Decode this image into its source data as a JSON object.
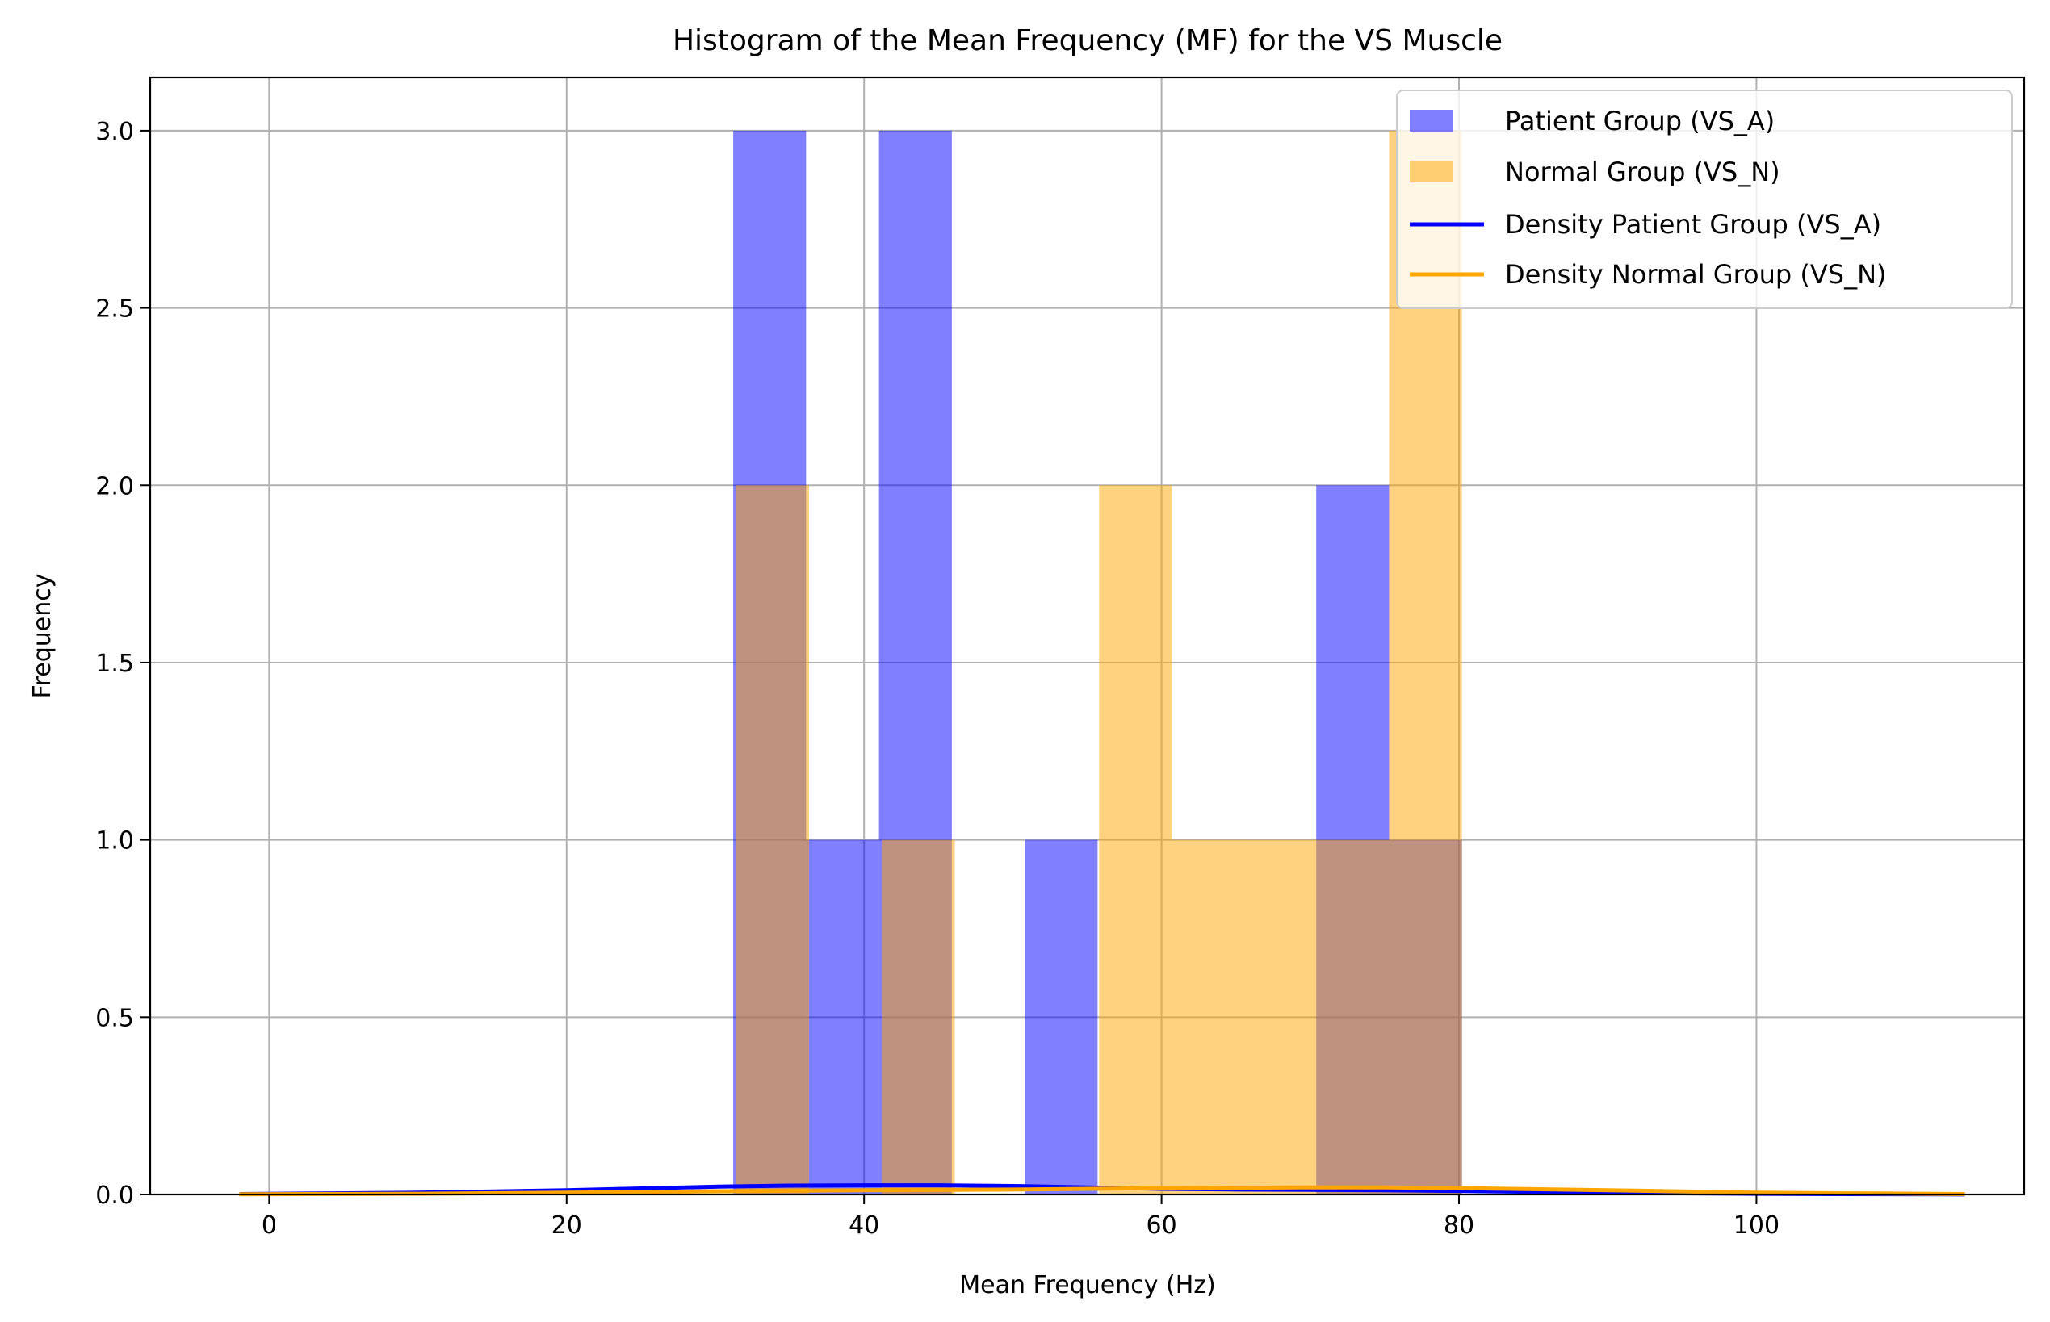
{
  "chart_data": {
    "type": "bar",
    "title": "Histogram of the Mean Frequency (MF) for the VS Muscle",
    "xlabel": "Mean Frequency (Hz)",
    "ylabel": "Frequency",
    "xlim": [
      -8,
      118
    ],
    "ylim": [
      0,
      3.15
    ],
    "xticks": [
      0,
      20,
      40,
      60,
      80,
      100
    ],
    "xtick_labels": [
      "0",
      "20",
      "40",
      "60",
      "80",
      "100"
    ],
    "yticks": [
      0,
      0.5,
      1,
      1.5,
      2,
      2.5,
      3
    ],
    "ytick_labels": [
      "0.0",
      "0.5",
      "1.0",
      "1.5",
      "2.0",
      "2.5",
      "3.0"
    ],
    "grid": true,
    "legend_position": "top-right",
    "series": [
      {
        "name": "Patient Group (VS_A)",
        "kind": "histogram",
        "color": "#0000ff",
        "opacity": 0.5,
        "bins": [
          {
            "x0": 31.2,
            "x1": 36.1,
            "count": 3
          },
          {
            "x0": 36.1,
            "x1": 41.0,
            "count": 1
          },
          {
            "x0": 41.0,
            "x1": 45.9,
            "count": 3
          },
          {
            "x0": 45.9,
            "x1": 50.8,
            "count": 0
          },
          {
            "x0": 50.8,
            "x1": 55.7,
            "count": 1
          },
          {
            "x0": 55.7,
            "x1": 60.6,
            "count": 0
          },
          {
            "x0": 60.6,
            "x1": 65.5,
            "count": 0
          },
          {
            "x0": 65.5,
            "x1": 70.4,
            "count": 0
          },
          {
            "x0": 70.4,
            "x1": 75.3,
            "count": 2
          },
          {
            "x0": 75.3,
            "x1": 80.2,
            "count": 1
          }
        ]
      },
      {
        "name": "Normal Group (VS_N)",
        "kind": "histogram",
        "color": "#ffa500",
        "opacity": 0.5,
        "bins": [
          {
            "x0": 31.4,
            "x1": 36.3,
            "count": 2
          },
          {
            "x0": 36.3,
            "x1": 41.2,
            "count": 0
          },
          {
            "x0": 41.2,
            "x1": 46.1,
            "count": 1
          },
          {
            "x0": 46.1,
            "x1": 50.9,
            "count": 0
          },
          {
            "x0": 50.9,
            "x1": 55.8,
            "count": 0
          },
          {
            "x0": 55.8,
            "x1": 60.7,
            "count": 2
          },
          {
            "x0": 60.7,
            "x1": 65.6,
            "count": 1
          },
          {
            "x0": 65.6,
            "x1": 70.5,
            "count": 1
          },
          {
            "x0": 70.5,
            "x1": 75.3,
            "count": 1
          },
          {
            "x0": 75.3,
            "x1": 80.2,
            "count": 3
          }
        ]
      },
      {
        "name": "Density Patient Group (VS_A)",
        "kind": "line",
        "color": "#0000ff",
        "x": [
          -2,
          10,
          20,
          30,
          35,
          40,
          45,
          50,
          55,
          60,
          65,
          70,
          75,
          80,
          90,
          100,
          114
        ],
        "y": [
          0.001,
          0.005,
          0.012,
          0.022,
          0.025,
          0.026,
          0.026,
          0.024,
          0.02,
          0.016,
          0.014,
          0.013,
          0.012,
          0.01,
          0.005,
          0.002,
          0.0003
        ]
      },
      {
        "name": "Density Normal Group (VS_N)",
        "kind": "line",
        "color": "#ffa500",
        "x": [
          -2,
          10,
          20,
          30,
          40,
          50,
          55,
          60,
          65,
          70,
          75,
          80,
          90,
          100,
          114
        ],
        "y": [
          0.0005,
          0.002,
          0.005,
          0.009,
          0.012,
          0.014,
          0.016,
          0.018,
          0.019,
          0.02,
          0.02,
          0.018,
          0.012,
          0.005,
          0.001
        ]
      }
    ]
  }
}
